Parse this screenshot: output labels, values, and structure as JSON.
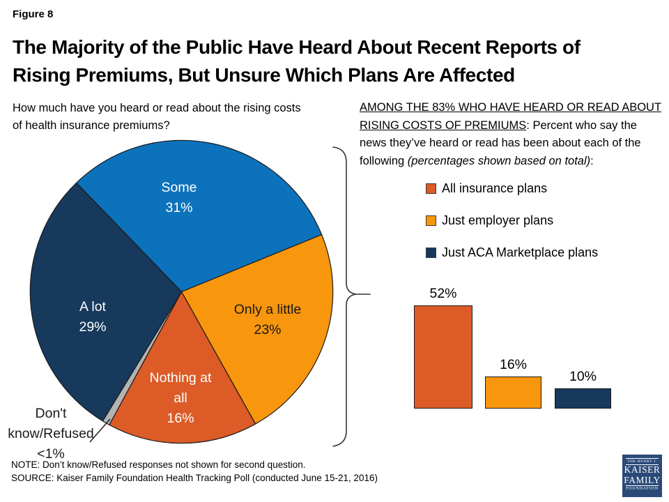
{
  "figure_label": "Figure 8",
  "title_line1": "The Majority of the Public Have Heard About Recent Reports of",
  "title_line2": "Rising Premiums, But Unsure Which Plans Are Affected",
  "pie_question_line1": "How much have you heard or read about the rising costs",
  "pie_question_line2": "of health insurance premiums?",
  "bar_intro": {
    "underlined": "AMONG THE 83% WHO HAVE HEARD OR READ ABOUT RISING COSTS OF PREMIUMS",
    "normal": ": Percent who say the news they’ve heard or read has been about each of the following ",
    "italic": "(percentages shown based on total)",
    "tail": ":"
  },
  "legend": [
    {
      "label": "All insurance plans",
      "color": "#DC5B27"
    },
    {
      "label": "Just employer plans",
      "color": "#F8960D"
    },
    {
      "label": "Just ACA Marketplace plans",
      "color": "#17395C"
    }
  ],
  "pie_labels": {
    "some": [
      "Some",
      "31%"
    ],
    "only_a_little": [
      "Only a little",
      "23%"
    ],
    "a_lot": [
      "A lot",
      "29%"
    ],
    "nothing_at_all": [
      "Nothing at",
      "all",
      "16%"
    ],
    "dont_know": [
      "Don't",
      "know/Refused",
      "<1%"
    ]
  },
  "note": "NOTE: Don’t know/Refused responses not shown for second question.",
  "source": "SOURCE: Kaiser Family Foundation Health Tracking Poll (conducted June 15-21, 2016)",
  "logo": {
    "line1": "THE HENRY J.",
    "line2": "KAISER",
    "line3": "FAMILY",
    "line4": "FOUNDATION"
  },
  "colors": {
    "blue": "#0D72BC",
    "orange": "#F8960D",
    "rust": "#DC5B27",
    "navy": "#17395C",
    "gray": "#B3B3B3",
    "logo_navy": "#2B4A78"
  },
  "chart_data": [
    {
      "type": "pie",
      "title": "How much have you heard or read about the rising costs of health insurance premiums?",
      "slices": [
        {
          "label": "Some",
          "value": 31,
          "display": "31%",
          "color": "#0D72BC"
        },
        {
          "label": "Only a little",
          "value": 23,
          "display": "23%",
          "color": "#F8960D"
        },
        {
          "label": "Nothing at all",
          "value": 16,
          "display": "16%",
          "color": "#DC5B27"
        },
        {
          "label": "Don't know/Refused",
          "value": 0.8,
          "display": "<1%",
          "color": "#B3B3B3"
        },
        {
          "label": "A lot",
          "value": 29,
          "display": "29%",
          "color": "#17395C"
        }
      ],
      "start_angle_deg": -44,
      "direction": "clockwise",
      "legend_position": "none"
    },
    {
      "type": "bar",
      "title": "Percent who say the news they've heard or read has been about each of the following",
      "categories": [
        "All insurance plans",
        "Just employer plans",
        "Just ACA Marketplace plans"
      ],
      "values": [
        52,
        16,
        10
      ],
      "labels": [
        "52%",
        "16%",
        "10%"
      ],
      "colors": [
        "#DC5B27",
        "#F8960D",
        "#17395C"
      ],
      "ylim": [
        0,
        65
      ],
      "grid": false,
      "axes_shown": false,
      "legend_position": "above"
    }
  ]
}
